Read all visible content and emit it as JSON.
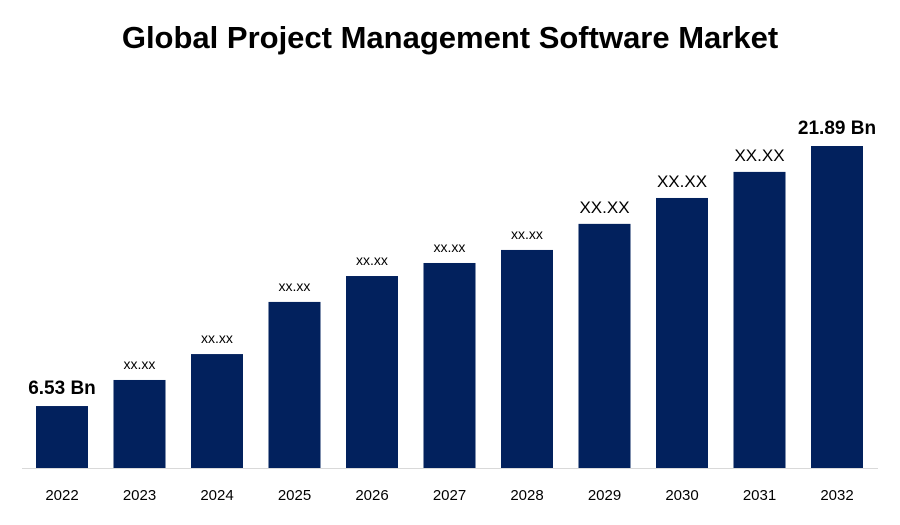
{
  "chart_data": {
    "type": "bar",
    "title": "Global Project Management Software Market",
    "xlabel": "",
    "ylabel": "",
    "categories": [
      "2022",
      "2023",
      "2024",
      "2025",
      "2026",
      "2027",
      "2028",
      "2029",
      "2030",
      "2031",
      "2032"
    ],
    "values": [
      6.53,
      8.07,
      9.6,
      12.68,
      14.21,
      14.98,
      15.75,
      17.29,
      18.82,
      20.36,
      21.89
    ],
    "data_labels": [
      "6.53 Bn",
      "xx.xx",
      "xx.xx",
      "xx.xx",
      "xx.xx",
      "xx.xx",
      "xx.xx",
      "XX.XX",
      "XX.XX",
      "XX.XX",
      "21.89 Bn"
    ],
    "ylim": [
      2.87,
      22
    ],
    "grid": false,
    "legend": "none",
    "bar_color": "#02215d"
  }
}
